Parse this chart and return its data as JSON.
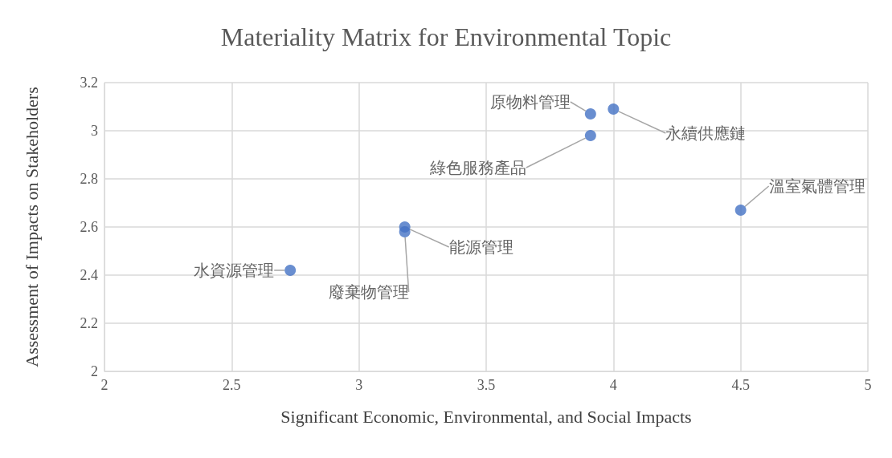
{
  "chart_data": {
    "type": "scatter",
    "title": "Materiality Matrix for Environmental Topic",
    "xlabel": "Significant Economic, Environmental, and Social Impacts",
    "ylabel": "Assessment of Impacts on Stakeholders",
    "x": [
      2.73,
      3.18,
      3.18,
      3.91,
      3.91,
      4.0,
      4.5
    ],
    "values": [
      2.42,
      2.6,
      2.58,
      3.07,
      2.98,
      3.09,
      2.67
    ],
    "color": "#4472c4",
    "marker": "circle",
    "xlim": [
      2,
      5
    ],
    "xticks": [
      2,
      2.5,
      3,
      3.5,
      4,
      4.5,
      5
    ],
    "ylim": [
      2,
      3.2
    ],
    "yticks": [
      2,
      2.2,
      2.4,
      2.6,
      2.8,
      3,
      3.2
    ],
    "grid": true,
    "annotations": [
      {
        "text": "水資源管理",
        "x": 2.73,
        "y": 2.42
      },
      {
        "text": "能源管理",
        "x": 3.18,
        "y": 2.6
      },
      {
        "text": "廢棄物管理",
        "x": 3.18,
        "y": 2.58
      },
      {
        "text": "原物料管理",
        "x": 3.91,
        "y": 3.07
      },
      {
        "text": "綠色服務產品",
        "x": 3.91,
        "y": 2.98
      },
      {
        "text": "永續供應鏈",
        "x": 4.0,
        "y": 3.09
      },
      {
        "text": "溫室氣體管理",
        "x": 4.5,
        "y": 2.67
      }
    ]
  }
}
